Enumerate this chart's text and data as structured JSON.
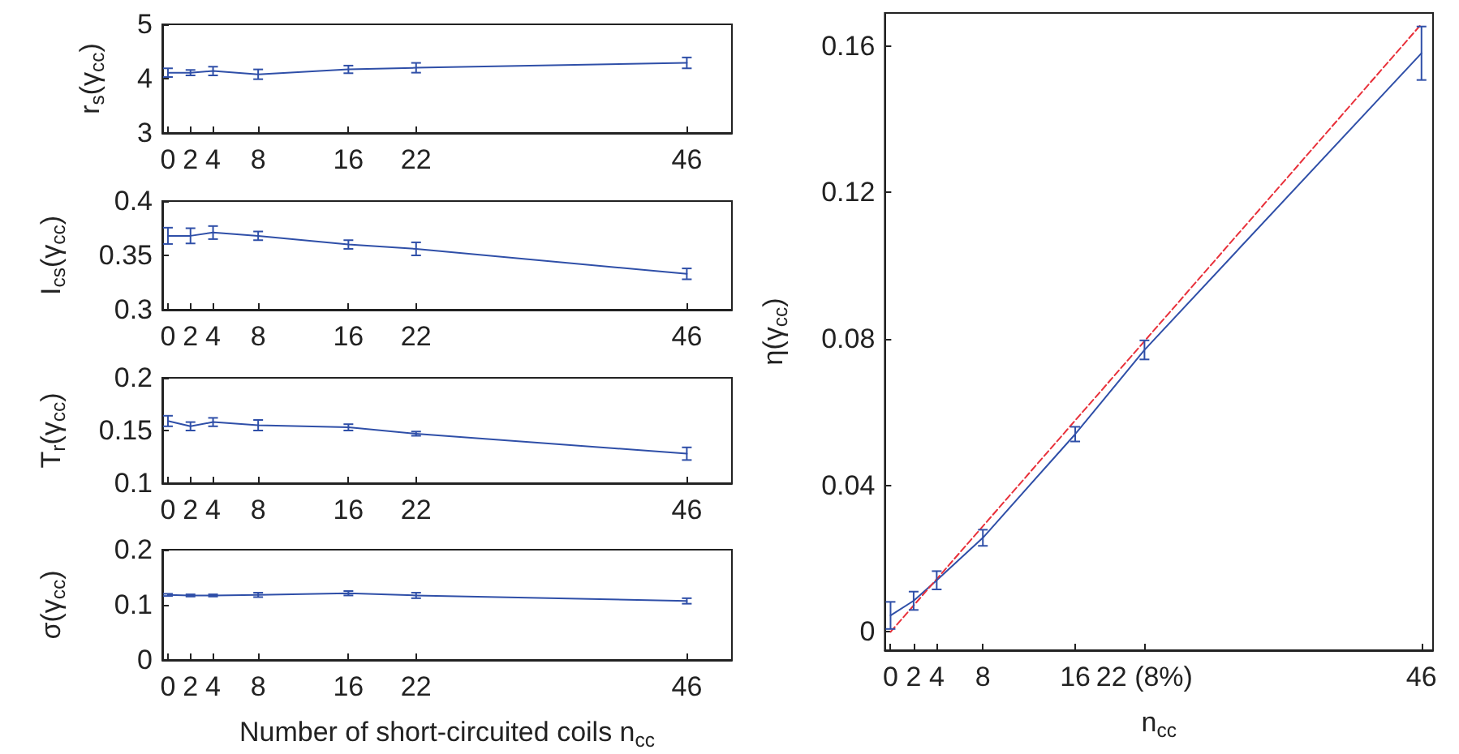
{
  "chart_data": [
    {
      "type": "line",
      "ylabel": "r$_{s}$(γ$_{cc}$)",
      "xlim": [
        -0.5,
        50
      ],
      "xticks": [
        0,
        2,
        4,
        8,
        16,
        22,
        46
      ],
      "ylim": [
        3,
        5
      ],
      "yticks": [
        3,
        4,
        5
      ],
      "x": [
        0,
        2,
        4,
        8,
        16,
        22,
        46
      ],
      "series": [
        {
          "color": "#2f4fa8",
          "values": [
            4.11,
            4.11,
            4.14,
            4.08,
            4.17,
            4.2,
            4.29
          ],
          "errors": [
            0.08,
            0.05,
            0.08,
            0.09,
            0.07,
            0.09,
            0.1
          ]
        }
      ]
    },
    {
      "type": "line",
      "ylabel": "I$_{cs}$(γ$_{cc}$)",
      "xlim": [
        -0.5,
        50
      ],
      "xticks": [
        0,
        2,
        4,
        8,
        16,
        22,
        46
      ],
      "ylim": [
        0.3,
        0.4
      ],
      "yticks": [
        0.3,
        0.35,
        0.4
      ],
      "x": [
        0,
        2,
        4,
        8,
        16,
        22,
        46
      ],
      "series": [
        {
          "color": "#2f4fa8",
          "values": [
            0.368,
            0.368,
            0.371,
            0.368,
            0.36,
            0.356,
            0.333
          ],
          "errors": [
            0.0075,
            0.007,
            0.006,
            0.004,
            0.004,
            0.006,
            0.005
          ]
        }
      ]
    },
    {
      "type": "line",
      "ylabel": "T$_{r}$(γ$_{cc}$)",
      "xlim": [
        -0.5,
        50
      ],
      "xticks": [
        0,
        2,
        4,
        8,
        16,
        22,
        46
      ],
      "ylim": [
        0.1,
        0.2
      ],
      "yticks": [
        0.1,
        0.15,
        0.2
      ],
      "x": [
        0,
        2,
        4,
        8,
        16,
        22,
        46
      ],
      "series": [
        {
          "color": "#2f4fa8",
          "values": [
            0.159,
            0.154,
            0.158,
            0.155,
            0.153,
            0.147,
            0.128
          ],
          "errors": [
            0.005,
            0.004,
            0.004,
            0.005,
            0.003,
            0.002,
            0.006
          ]
        }
      ]
    },
    {
      "type": "line",
      "ylabel": "σ(γ$_{cc}$)",
      "xlabel": "Number of short-circuited coils n$_{cc}$",
      "xlim": [
        -0.5,
        50
      ],
      "xticks": [
        0,
        2,
        4,
        8,
        16,
        22,
        46
      ],
      "ylim": [
        0,
        0.2
      ],
      "yticks": [
        0,
        0.1,
        0.2
      ],
      "x": [
        0,
        2,
        4,
        8,
        16,
        22,
        46
      ],
      "series": [
        {
          "color": "#2f4fa8",
          "values": [
            0.118,
            0.117,
            0.117,
            0.118,
            0.121,
            0.117,
            0.107
          ],
          "errors": [
            0.002,
            0.002,
            0.002,
            0.004,
            0.004,
            0.005,
            0.005
          ]
        }
      ]
    },
    {
      "type": "line",
      "ylabel": "η(γ$_{cc}$)",
      "xlabel": "n$_{cc}$",
      "xlim": [
        -0.5,
        47
      ],
      "xticks": [
        0,
        2,
        4,
        8,
        16,
        {
          "value": 22,
          "label": "22 (8%)"
        },
        46
      ],
      "ylim": [
        -0.005,
        0.169
      ],
      "yticks": [
        0,
        0.04,
        0.08,
        0.12,
        0.16
      ],
      "x": [
        0,
        2,
        4,
        8,
        16,
        22,
        46
      ],
      "series": [
        {
          "color": "#2f4fa8",
          "values": [
            0.0045,
            0.0085,
            0.0141,
            0.0257,
            0.054,
            0.077,
            0.158
          ],
          "errors": [
            0.0037,
            0.0025,
            0.0025,
            0.0022,
            0.002,
            0.0026,
            0.0073
          ]
        },
        {
          "color": "#e8303a",
          "x": [
            0,
            46
          ],
          "values": [
            0,
            0.166
          ],
          "line_style": "dashed"
        }
      ]
    }
  ]
}
